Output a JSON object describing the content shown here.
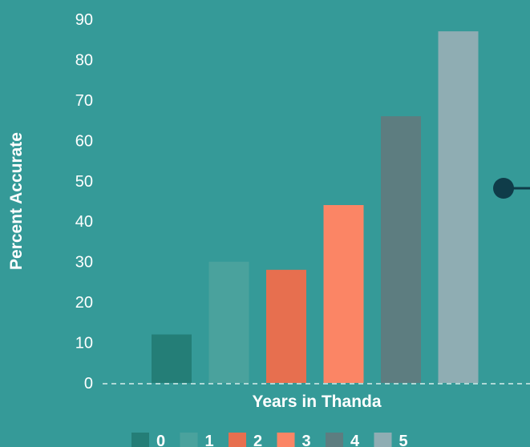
{
  "chart_data": {
    "type": "bar",
    "categories": [
      "0",
      "1",
      "2",
      "3",
      "4",
      "5"
    ],
    "values": [
      12,
      30,
      28,
      44,
      66,
      87
    ],
    "xlabel": "Years in Thanda",
    "ylabel": "Percent Accurate",
    "ylim": [
      0,
      90
    ],
    "yticks": [
      0,
      10,
      20,
      30,
      40,
      50,
      60,
      70,
      80,
      90
    ],
    "grid": false,
    "legend": "bottom",
    "colors": [
      "#247e77",
      "#4aa29d",
      "#e76f4f",
      "#fb8565",
      "#5d7d80",
      "#8fadb3"
    ],
    "background": "#359a98",
    "marker_color": "#0f3c49"
  }
}
